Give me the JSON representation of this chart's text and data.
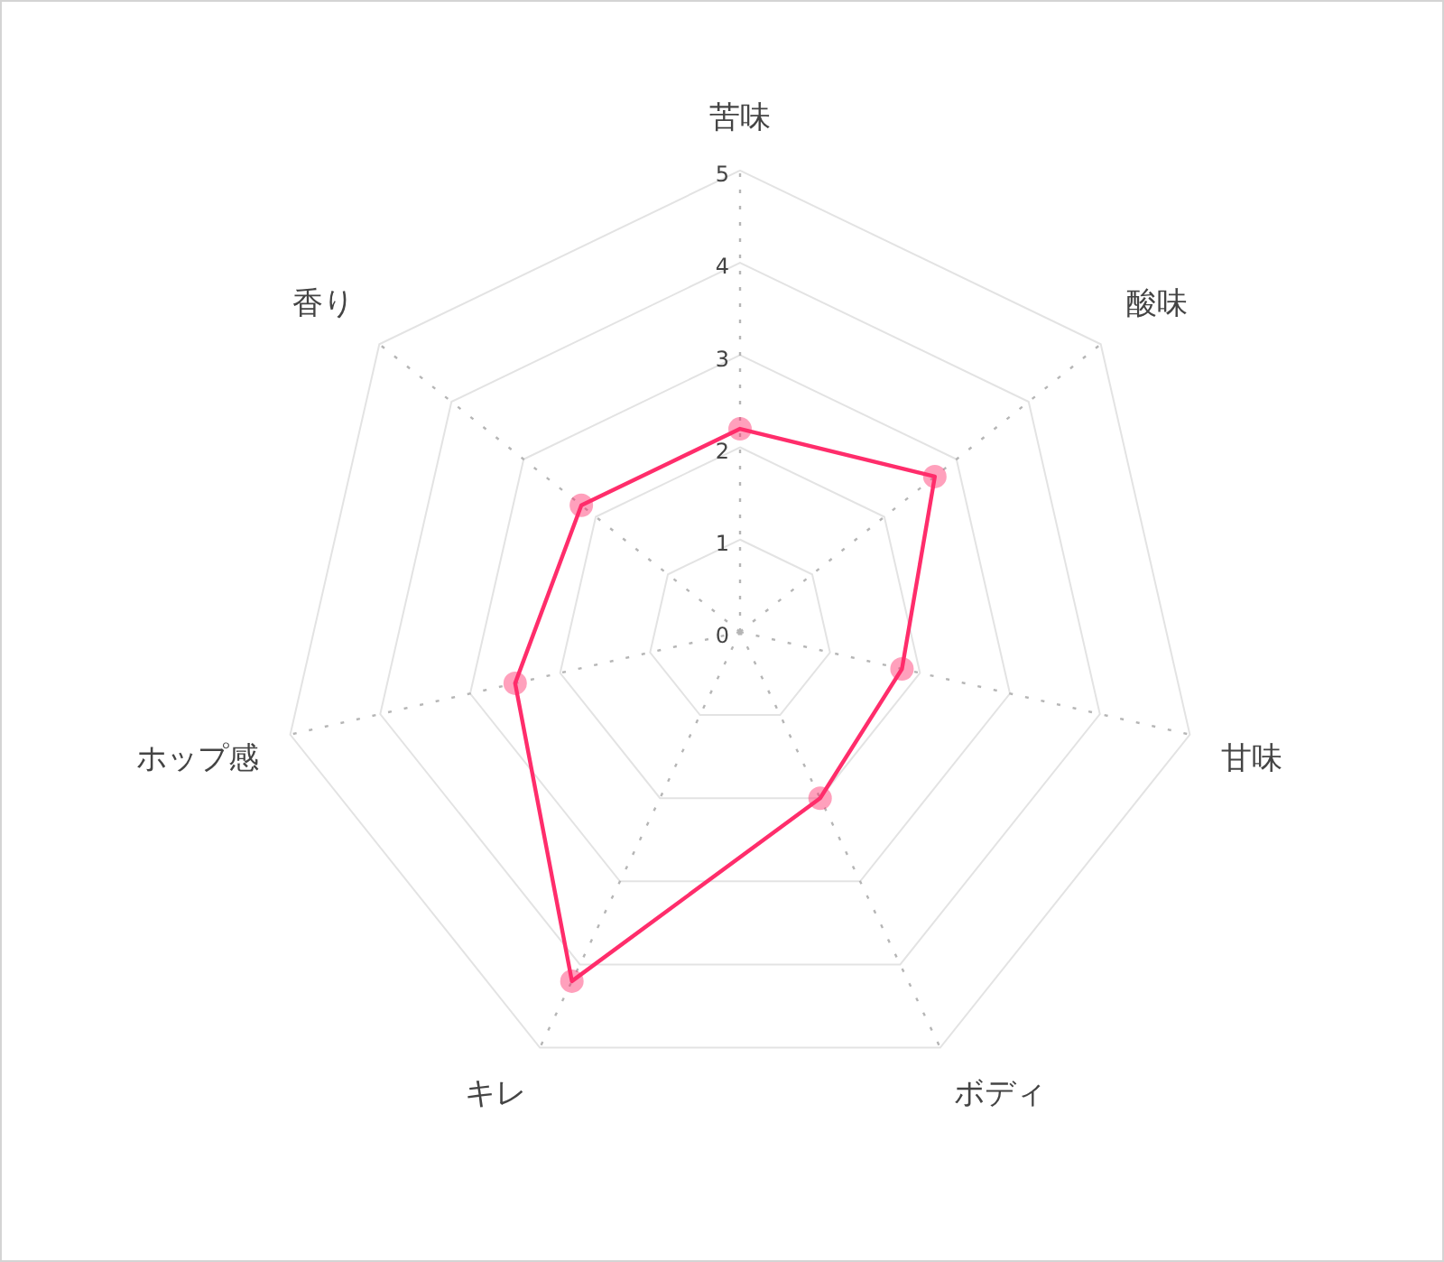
{
  "chart_data": {
    "type": "radar",
    "categories": [
      "苦味",
      "酸味",
      "甘味",
      "ボディ",
      "キレ",
      "ホップ感",
      "香り"
    ],
    "series": [
      {
        "color": "#ff2d6b",
        "values": [
          2.2,
          2.7,
          1.8,
          2.0,
          4.2,
          2.5,
          2.2
        ]
      }
    ],
    "ylim": [
      0,
      5
    ],
    "yticks": [
      0,
      1,
      2,
      3,
      4,
      5
    ],
    "grid": true,
    "marker": "circle",
    "legend": false
  }
}
